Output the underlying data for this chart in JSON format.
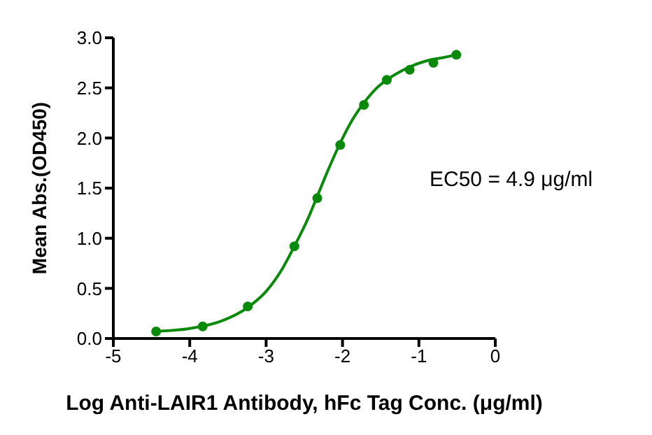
{
  "chart_data": {
    "type": "scatter",
    "xlabel": "Log Anti-LAIR1 Antibody, hFc Tag Conc. (μg/ml)",
    "ylabel": "Mean Abs.(OD450)",
    "annotations": [
      "EC50 = 4.9 μg/ml"
    ],
    "xlim": [
      -5,
      0
    ],
    "xticks": [
      -5,
      -4,
      -3,
      -2,
      -1,
      0
    ],
    "ylim": [
      0,
      3
    ],
    "yticks": [
      {
        "value": 0,
        "label": "0.0"
      },
      {
        "value": 0.5,
        "label": "0.5"
      },
      {
        "value": 1,
        "label": "1.0"
      },
      {
        "value": 1.5,
        "label": "1.5"
      },
      {
        "value": 2,
        "label": "2.0"
      },
      {
        "value": 2.5,
        "label": "2.5"
      },
      {
        "value": 3,
        "label": "3.0"
      }
    ],
    "grid": false,
    "series": [
      {
        "color": "#0a8a0a",
        "marker": "circle",
        "x": [
          -4.44,
          -3.83,
          -3.24,
          -2.63,
          -2.33,
          -2.03,
          -1.72,
          -1.42,
          -1.12,
          -0.81,
          -0.51
        ],
        "values": [
          0.07,
          0.12,
          0.32,
          0.92,
          1.4,
          1.93,
          2.33,
          2.58,
          2.68,
          2.75,
          2.83
        ]
      },
      {
        "type": "line",
        "color": "#0a8a0a",
        "marker": "none",
        "line_style": "solid",
        "x": [
          -4.44,
          -4.0,
          -3.6,
          -3.24,
          -3.0,
          -2.8,
          -2.63,
          -2.45,
          -2.33,
          -2.2,
          -2.03,
          -1.88,
          -1.72,
          -1.55,
          -1.42,
          -1.25,
          -1.12,
          -0.9,
          -0.7,
          -0.51
        ],
        "values": [
          0.07,
          0.1,
          0.17,
          0.31,
          0.47,
          0.68,
          0.92,
          1.2,
          1.42,
          1.66,
          1.95,
          2.17,
          2.35,
          2.5,
          2.58,
          2.66,
          2.71,
          2.77,
          2.8,
          2.83
        ]
      }
    ]
  }
}
